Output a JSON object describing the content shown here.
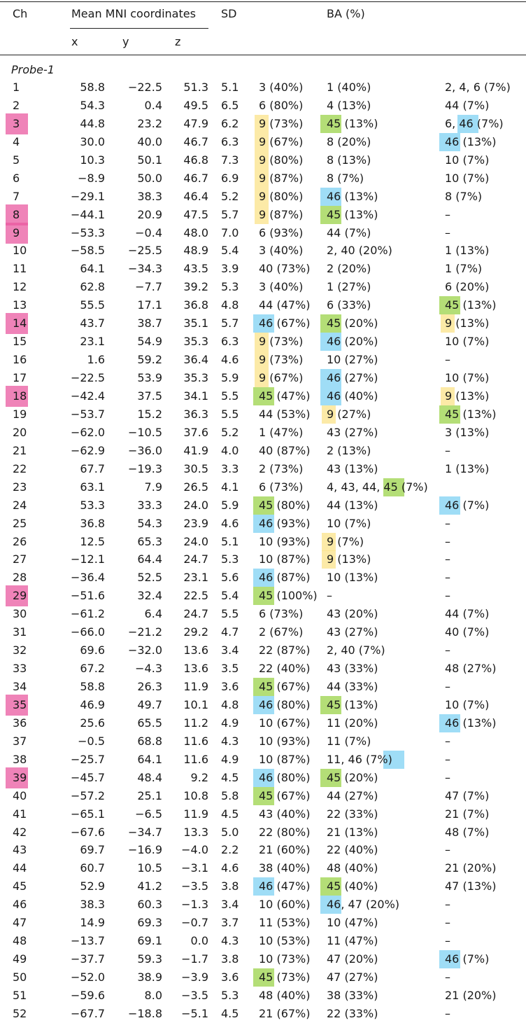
{
  "headers": {
    "ch": "Ch",
    "mni": "Mean MNI coordinates",
    "x": "x",
    "y": "y",
    "z": "z",
    "sd": "SD",
    "ba": "BA (%)"
  },
  "probe_label": "Probe-1",
  "highlight_colors": {
    "yellow": "#fbe38a",
    "green": "#9bd34a",
    "blue": "#7fd2f3",
    "pink": "#e95aa0"
  },
  "rows": [
    {
      "ch": "1",
      "x": "58.8",
      "y": "−22.5",
      "z": "51.3",
      "sd": "5.1",
      "ba1": "3 (40%)",
      "ba2": "1 (40%)",
      "ba3": "2, 4, 6 (7%)"
    },
    {
      "ch": "2",
      "x": "54.3",
      "y": "0.4",
      "z": "49.5",
      "sd": "6.5",
      "ba1": "6 (80%)",
      "ba2": "4 (13%)",
      "ba3": "44 (7%)"
    },
    {
      "ch": "3",
      "x": "44.8",
      "y": "23.2",
      "z": "47.9",
      "sd": "6.2",
      "ba1": "9 (73%)",
      "ba2": "45 (13%)",
      "ba3": "6, 46 (7%)"
    },
    {
      "ch": "4",
      "x": "30.0",
      "y": "40.0",
      "z": "46.7",
      "sd": "6.3",
      "ba1": "9 (67%)",
      "ba2": "8 (20%)",
      "ba3": "46 (13%)"
    },
    {
      "ch": "5",
      "x": "10.3",
      "y": "50.1",
      "z": "46.8",
      "sd": "7.3",
      "ba1": "9 (80%)",
      "ba2": "8 (13%)",
      "ba3": "10 (7%)"
    },
    {
      "ch": "6",
      "x": "−8.9",
      "y": "50.0",
      "z": "46.7",
      "sd": "6.9",
      "ba1": "9 (87%)",
      "ba2": "8 (7%)",
      "ba3": "10 (7%)"
    },
    {
      "ch": "7",
      "x": "−29.1",
      "y": "38.3",
      "z": "46.4",
      "sd": "5.2",
      "ba1": "9 (80%)",
      "ba2": "46 (13%)",
      "ba3": "8 (7%)"
    },
    {
      "ch": "8",
      "x": "−44.1",
      "y": "20.9",
      "z": "47.5",
      "sd": "5.7",
      "ba1": "9 (87%)",
      "ba2": "45 (13%)",
      "ba3": "–"
    },
    {
      "ch": "9",
      "x": "−53.3",
      "y": "−0.4",
      "z": "48.0",
      "sd": "7.0",
      "ba1": "6 (93%)",
      "ba2": "44 (7%)",
      "ba3": "–"
    },
    {
      "ch": "10",
      "x": "−58.5",
      "y": "−25.5",
      "z": "48.9",
      "sd": "5.4",
      "ba1": "3 (40%)",
      "ba2": "2, 40 (20%)",
      "ba3": "1 (13%)"
    },
    {
      "ch": "11",
      "x": "64.1",
      "y": "−34.3",
      "z": "43.5",
      "sd": "3.9",
      "ba1": "40 (73%)",
      "ba2": "2 (20%)",
      "ba3": "1 (7%)"
    },
    {
      "ch": "12",
      "x": "62.8",
      "y": "−7.7",
      "z": "39.2",
      "sd": "5.3",
      "ba1": "3 (40%)",
      "ba2": "1 (27%)",
      "ba3": "6 (20%)"
    },
    {
      "ch": "13",
      "x": "55.5",
      "y": "17.1",
      "z": "36.8",
      "sd": "4.8",
      "ba1": "44 (47%)",
      "ba2": "6 (33%)",
      "ba3": "45 (13%)"
    },
    {
      "ch": "14",
      "x": "43.7",
      "y": "38.7",
      "z": "35.1",
      "sd": "5.7",
      "ba1": "46 (67%)",
      "ba2": "45 (20%)",
      "ba3": "9 (13%)"
    },
    {
      "ch": "15",
      "x": "23.1",
      "y": "54.9",
      "z": "35.3",
      "sd": "6.3",
      "ba1": "9 (73%)",
      "ba2": "46 (20%)",
      "ba3": "10 (7%)"
    },
    {
      "ch": "16",
      "x": "1.6",
      "y": "59.2",
      "z": "36.4",
      "sd": "4.6",
      "ba1": "9 (73%)",
      "ba2": "10 (27%)",
      "ba3": "–"
    },
    {
      "ch": "17",
      "x": "−22.5",
      "y": "53.9",
      "z": "35.3",
      "sd": "5.9",
      "ba1": "9 (67%)",
      "ba2": "46 (27%)",
      "ba3": "10 (7%)"
    },
    {
      "ch": "18",
      "x": "−42.4",
      "y": "37.5",
      "z": "34.1",
      "sd": "5.5",
      "ba1": "45 (47%)",
      "ba2": "46 (40%)",
      "ba3": "9 (13%)"
    },
    {
      "ch": "19",
      "x": "−53.7",
      "y": "15.2",
      "z": "36.3",
      "sd": "5.5",
      "ba1": "44 (53%)",
      "ba2": "9 (27%)",
      "ba3": "45 (13%)"
    },
    {
      "ch": "20",
      "x": "−62.0",
      "y": "−10.5",
      "z": "37.6",
      "sd": "5.2",
      "ba1": "1 (47%)",
      "ba2": "43 (27%)",
      "ba3": "3 (13%)"
    },
    {
      "ch": "21",
      "x": "−62.9",
      "y": "−36.0",
      "z": "41.9",
      "sd": "4.0",
      "ba1": "40 (87%)",
      "ba2": "2 (13%)",
      "ba3": "–"
    },
    {
      "ch": "22",
      "x": "67.7",
      "y": "−19.3",
      "z": "30.5",
      "sd": "3.3",
      "ba1": "2 (73%)",
      "ba2": "43 (13%)",
      "ba3": "1 (13%)"
    },
    {
      "ch": "23",
      "x": "63.1",
      "y": "7.9",
      "z": "26.5",
      "sd": "4.1",
      "ba1": "6 (73%)",
      "ba2": "4, 43, 44, 45 (7%)",
      "ba3": ""
    },
    {
      "ch": "24",
      "x": "53.3",
      "y": "33.3",
      "z": "24.0",
      "sd": "5.9",
      "ba1": "45 (80%)",
      "ba2": "44 (13%)",
      "ba3": "46 (7%)"
    },
    {
      "ch": "25",
      "x": "36.8",
      "y": "54.3",
      "z": "23.9",
      "sd": "4.6",
      "ba1": "46 (93%)",
      "ba2": "10 (7%)",
      "ba3": "–"
    },
    {
      "ch": "26",
      "x": "12.5",
      "y": "65.3",
      "z": "24.0",
      "sd": "5.1",
      "ba1": "10 (93%)",
      "ba2": "9 (7%)",
      "ba3": "–"
    },
    {
      "ch": "27",
      "x": "−12.1",
      "y": "64.4",
      "z": "24.7",
      "sd": "5.3",
      "ba1": "10 (87%)",
      "ba2": "9 (13%)",
      "ba3": "–"
    },
    {
      "ch": "28",
      "x": "−36.4",
      "y": "52.5",
      "z": "23.1",
      "sd": "5.6",
      "ba1": "46 (87%)",
      "ba2": "10 (13%)",
      "ba3": "–"
    },
    {
      "ch": "29",
      "x": "−51.6",
      "y": "32.4",
      "z": "22.5",
      "sd": "5.4",
      "ba1": "45 (100%)",
      "ba2": "–",
      "ba3": "–"
    },
    {
      "ch": "30",
      "x": "−61.2",
      "y": "6.4",
      "z": "24.7",
      "sd": "5.5",
      "ba1": "6 (73%)",
      "ba2": "43 (20%)",
      "ba3": "44 (7%)"
    },
    {
      "ch": "31",
      "x": "−66.0",
      "y": "−21.2",
      "z": "29.2",
      "sd": "4.7",
      "ba1": "2 (67%)",
      "ba2": "43 (27%)",
      "ba3": "40 (7%)"
    },
    {
      "ch": "32",
      "x": "69.6",
      "y": "−32.0",
      "z": "13.6",
      "sd": "3.4",
      "ba1": "22 (87%)",
      "ba2": "2, 40 (7%)",
      "ba3": "–"
    },
    {
      "ch": "33",
      "x": "67.2",
      "y": "−4.3",
      "z": "13.6",
      "sd": "3.5",
      "ba1": "22 (40%)",
      "ba2": "43 (33%)",
      "ba3": "48 (27%)"
    },
    {
      "ch": "34",
      "x": "58.8",
      "y": "26.3",
      "z": "11.9",
      "sd": "3.6",
      "ba1": "45 (67%)",
      "ba2": "44 (33%)",
      "ba3": "–"
    },
    {
      "ch": "35",
      "x": "46.9",
      "y": "49.7",
      "z": "10.1",
      "sd": "4.8",
      "ba1": "46 (80%)",
      "ba2": "45 (13%)",
      "ba3": "10 (7%)"
    },
    {
      "ch": "36",
      "x": "25.6",
      "y": "65.5",
      "z": "11.2",
      "sd": "4.9",
      "ba1": "10 (67%)",
      "ba2": "11 (20%)",
      "ba3": "46 (13%)"
    },
    {
      "ch": "37",
      "x": "−0.5",
      "y": "68.8",
      "z": "11.6",
      "sd": "4.3",
      "ba1": "10 (93%)",
      "ba2": "11 (7%)",
      "ba3": "–"
    },
    {
      "ch": "38",
      "x": "−25.7",
      "y": "64.1",
      "z": "11.6",
      "sd": "4.9",
      "ba1": "10 (87%)",
      "ba2": "11, 46 (7%)",
      "ba3": "–"
    },
    {
      "ch": "39",
      "x": "−45.7",
      "y": "48.4",
      "z": "9.2",
      "sd": "4.5",
      "ba1": "46 (80%)",
      "ba2": "45 (20%)",
      "ba3": "–"
    },
    {
      "ch": "40",
      "x": "−57.2",
      "y": "25.1",
      "z": "10.8",
      "sd": "5.8",
      "ba1": "45 (67%)",
      "ba2": "44 (27%)",
      "ba3": "47 (7%)"
    },
    {
      "ch": "41",
      "x": "−65.1",
      "y": "−6.5",
      "z": "11.9",
      "sd": "4.5",
      "ba1": "43 (40%)",
      "ba2": "22 (33%)",
      "ba3": "21 (7%)"
    },
    {
      "ch": "42",
      "x": "−67.6",
      "y": "−34.7",
      "z": "13.3",
      "sd": "5.0",
      "ba1": "22 (80%)",
      "ba2": "21 (13%)",
      "ba3": "48 (7%)"
    },
    {
      "ch": "43",
      "x": "69.7",
      "y": "−16.9",
      "z": "−4.0",
      "sd": "2.2",
      "ba1": "21 (60%)",
      "ba2": "22 (40%)",
      "ba3": "–"
    },
    {
      "ch": "44",
      "x": "60.7",
      "y": "10.5",
      "z": "−3.1",
      "sd": "4.6",
      "ba1": "38 (40%)",
      "ba2": "48 (40%)",
      "ba3": "21 (20%)"
    },
    {
      "ch": "45",
      "x": "52.9",
      "y": "41.2",
      "z": "−3.5",
      "sd": "3.8",
      "ba1": "46 (47%)",
      "ba2": "45 (40%)",
      "ba3": "47 (13%)"
    },
    {
      "ch": "46",
      "x": "38.3",
      "y": "60.3",
      "z": "−1.3",
      "sd": "3.4",
      "ba1": "10 (60%)",
      "ba2": "46, 47 (20%)",
      "ba3": "–"
    },
    {
      "ch": "47",
      "x": "14.9",
      "y": "69.3",
      "z": "−0.7",
      "sd": "3.7",
      "ba1": "11 (53%)",
      "ba2": "10 (47%)",
      "ba3": "–"
    },
    {
      "ch": "48",
      "x": "−13.7",
      "y": "69.1",
      "z": "0.0",
      "sd": "4.3",
      "ba1": "10 (53%)",
      "ba2": "11 (47%)",
      "ba3": "–"
    },
    {
      "ch": "49",
      "x": "−37.7",
      "y": "59.3",
      "z": "−1.7",
      "sd": "3.8",
      "ba1": "10 (73%)",
      "ba2": "47 (20%)",
      "ba3": "46 (7%)"
    },
    {
      "ch": "50",
      "x": "−52.0",
      "y": "38.9",
      "z": "−3.9",
      "sd": "3.6",
      "ba1": "45 (73%)",
      "ba2": "47 (27%)",
      "ba3": "–"
    },
    {
      "ch": "51",
      "x": "−59.6",
      "y": "8.0",
      "z": "−3.5",
      "sd": "5.3",
      "ba1": "48 (40%)",
      "ba2": "38 (33%)",
      "ba3": "21 (20%)"
    },
    {
      "ch": "52",
      "x": "−67.7",
      "y": "−18.8",
      "z": "−5.1",
      "sd": "4.5",
      "ba1": "21 (67%)",
      "ba2": "22 (33%)",
      "ba3": "–"
    }
  ],
  "highlights": [
    {
      "row": "3",
      "col": "ch",
      "color": "pink"
    },
    {
      "row": "8",
      "col": "ch",
      "color": "pink"
    },
    {
      "row": "9",
      "col": "ch",
      "color": "pink"
    },
    {
      "row": "14",
      "col": "ch",
      "color": "pink"
    },
    {
      "row": "18",
      "col": "ch",
      "color": "pink"
    },
    {
      "row": "29",
      "col": "ch",
      "color": "pink"
    },
    {
      "row": "35",
      "col": "ch",
      "color": "pink"
    },
    {
      "row": "39",
      "col": "ch",
      "color": "pink"
    },
    {
      "row": "3",
      "col": "ba1",
      "color": "yellow"
    },
    {
      "row": "4",
      "col": "ba1",
      "color": "yellow"
    },
    {
      "row": "5",
      "col": "ba1",
      "color": "yellow"
    },
    {
      "row": "6",
      "col": "ba1",
      "color": "yellow"
    },
    {
      "row": "7",
      "col": "ba1",
      "color": "yellow"
    },
    {
      "row": "8",
      "col": "ba1",
      "color": "yellow"
    },
    {
      "row": "15",
      "col": "ba1",
      "color": "yellow"
    },
    {
      "row": "16",
      "col": "ba1",
      "color": "yellow"
    },
    {
      "row": "17",
      "col": "ba1",
      "color": "yellow"
    },
    {
      "row": "14",
      "col": "ba1",
      "color": "blue"
    },
    {
      "row": "18",
      "col": "ba1",
      "color": "green"
    },
    {
      "row": "24",
      "col": "ba1",
      "color": "green"
    },
    {
      "row": "25",
      "col": "ba1",
      "color": "blue"
    },
    {
      "row": "28",
      "col": "ba1",
      "color": "blue"
    },
    {
      "row": "29",
      "col": "ba1",
      "color": "green"
    },
    {
      "row": "34",
      "col": "ba1",
      "color": "green"
    },
    {
      "row": "35",
      "col": "ba1",
      "color": "blue"
    },
    {
      "row": "39",
      "col": "ba1",
      "color": "blue"
    },
    {
      "row": "40",
      "col": "ba1",
      "color": "green"
    },
    {
      "row": "45",
      "col": "ba1",
      "color": "blue"
    },
    {
      "row": "50",
      "col": "ba1",
      "color": "green"
    },
    {
      "row": "3",
      "col": "ba2",
      "color": "green"
    },
    {
      "row": "7",
      "col": "ba2",
      "color": "blue"
    },
    {
      "row": "8",
      "col": "ba2",
      "color": "green"
    },
    {
      "row": "14",
      "col": "ba2",
      "color": "green"
    },
    {
      "row": "15",
      "col": "ba2",
      "color": "blue"
    },
    {
      "row": "17",
      "col": "ba2",
      "color": "blue"
    },
    {
      "row": "18",
      "col": "ba2",
      "color": "blue"
    },
    {
      "row": "19",
      "col": "ba2",
      "color": "yellow"
    },
    {
      "row": "26",
      "col": "ba2",
      "color": "yellow"
    },
    {
      "row": "27",
      "col": "ba2",
      "color": "yellow"
    },
    {
      "row": "35",
      "col": "ba2",
      "color": "green"
    },
    {
      "row": "39",
      "col": "ba2",
      "color": "green"
    },
    {
      "row": "45",
      "col": "ba2",
      "color": "green"
    },
    {
      "row": "46",
      "col": "ba2",
      "color": "blue"
    },
    {
      "row": "23",
      "col": "ba2b",
      "color": "green"
    },
    {
      "row": "38",
      "col": "ba2b",
      "color": "blue"
    },
    {
      "row": "3",
      "col": "ba3b",
      "color": "blue"
    },
    {
      "row": "4",
      "col": "ba3",
      "color": "blue"
    },
    {
      "row": "13",
      "col": "ba3",
      "color": "green"
    },
    {
      "row": "14",
      "col": "ba3",
      "color": "yellow"
    },
    {
      "row": "18",
      "col": "ba3",
      "color": "yellow"
    },
    {
      "row": "19",
      "col": "ba3",
      "color": "green"
    },
    {
      "row": "24",
      "col": "ba3",
      "color": "blue"
    },
    {
      "row": "36",
      "col": "ba3",
      "color": "blue"
    },
    {
      "row": "49",
      "col": "ba3",
      "color": "blue"
    }
  ]
}
